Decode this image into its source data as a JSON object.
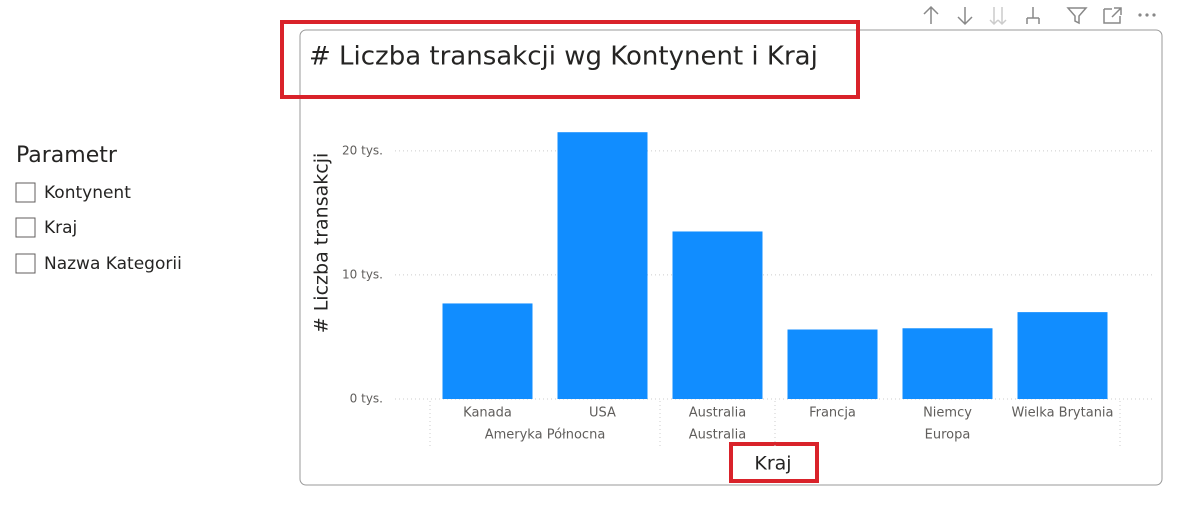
{
  "slicer": {
    "title": "Parametr",
    "items": [
      "Kontynent",
      "Kraj",
      "Nazwa Kategorii"
    ]
  },
  "chart_data": {
    "type": "bar",
    "title": "# Liczba transakcji wg Kontynent i Kraj",
    "y_label": "# Liczba transakcji",
    "x_label": "Kraj",
    "color": "#118dff",
    "groups": [
      {
        "name": "Ameryka Północna",
        "categories": [
          "Kanada",
          "USA"
        ],
        "values": [
          7700,
          21500
        ]
      },
      {
        "name": "Australia",
        "categories": [
          "Australia"
        ],
        "values": [
          13500
        ]
      },
      {
        "name": "Europa",
        "categories": [
          "Francja",
          "Niemcy",
          "Wielka Brytania"
        ],
        "values": [
          5600,
          5700,
          7000
        ]
      }
    ],
    "ylim": [
      0,
      22000
    ],
    "yticks": [
      {
        "value": 0,
        "label": "0 tys."
      },
      {
        "value": 10000,
        "label": "10 tys."
      },
      {
        "value": 20000,
        "label": "20 tys."
      }
    ],
    "grid": true
  }
}
